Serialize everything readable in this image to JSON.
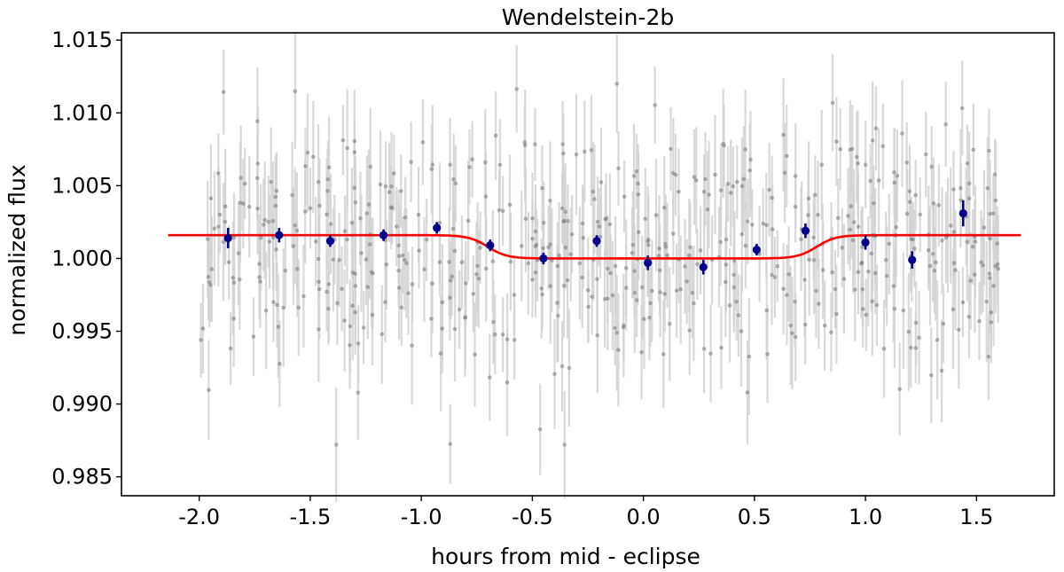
{
  "chart_data": {
    "type": "scatter",
    "title": "Wendelstein-2b",
    "xlabel": "hours from mid - eclipse",
    "ylabel": "normalized flux",
    "xlim": [
      -2.35,
      1.85
    ],
    "ylim": [
      0.9837,
      1.0155
    ],
    "x_ticks": [
      -2.0,
      -1.5,
      -1.0,
      -0.5,
      0.0,
      0.5,
      1.0,
      1.5
    ],
    "x_tick_labels": [
      "-2.0",
      "-1.5",
      "-1.0",
      "-0.5",
      "0.0",
      "0.5",
      "1.0",
      "1.5"
    ],
    "y_ticks": [
      0.985,
      0.99,
      0.995,
      1.0,
      1.005,
      1.01,
      1.015
    ],
    "y_tick_labels": [
      "0.985",
      "0.990",
      "0.995",
      "1.000",
      "1.005",
      "1.010",
      "1.015"
    ],
    "grid": false,
    "legend": false,
    "series": [
      {
        "role": "raw",
        "color": "#808080",
        "errorbar_color": "#d3d3d3",
        "x_range": [
          -2.0,
          1.6
        ],
        "n_points": 560,
        "flux_mean": 1.0008,
        "flux_scatter": 0.0042,
        "typical_error": 0.0032
      },
      {
        "role": "binned",
        "color": "#00008b",
        "x": [
          -1.87,
          -1.64,
          -1.41,
          -1.17,
          -0.93,
          -0.69,
          -0.45,
          -0.21,
          0.02,
          0.27,
          0.51,
          0.73,
          1.0,
          1.21,
          1.44
        ],
        "y": [
          1.0014,
          1.0016,
          1.0012,
          1.0016,
          1.0021,
          1.0009,
          1.0,
          1.0012,
          0.9997,
          0.9994,
          1.0006,
          1.0019,
          1.0011,
          0.9999,
          1.0031
        ],
        "yerr": [
          0.0007,
          0.0005,
          0.0004,
          0.0004,
          0.0004,
          0.0004,
          0.0004,
          0.0004,
          0.0005,
          0.0005,
          0.0004,
          0.0005,
          0.0005,
          0.0006,
          0.0009
        ]
      },
      {
        "role": "model",
        "color": "#ff0000",
        "x_range": [
          -2.14,
          1.7
        ],
        "baseline": 1.0016,
        "depth": 0.0016,
        "ingress_center": -0.7,
        "egress_center": 0.78,
        "ingress_width": 0.26
      }
    ]
  }
}
